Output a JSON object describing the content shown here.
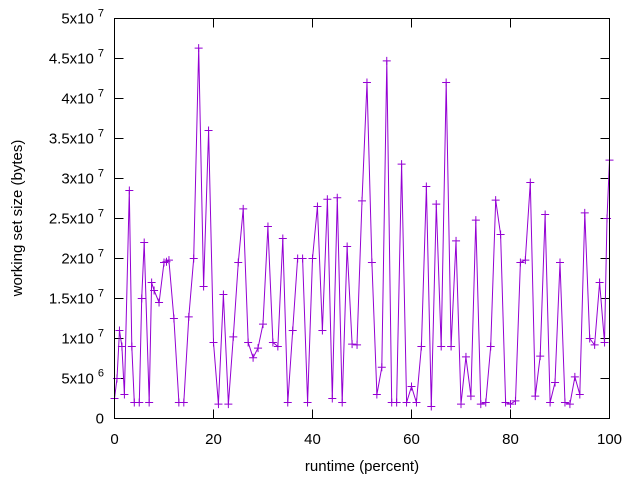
{
  "chart_data": {
    "type": "line",
    "title": "",
    "xlabel": "runtime (percent)",
    "ylabel": "working set size (bytes)",
    "xlim": [
      0,
      100
    ],
    "ylim": [
      0,
      50000000
    ],
    "grid": false,
    "legend": "none",
    "x_ticks": [
      {
        "value": 0,
        "label": "0"
      },
      {
        "value": 20,
        "label": "20"
      },
      {
        "value": 40,
        "label": "40"
      },
      {
        "value": 60,
        "label": "60"
      },
      {
        "value": 80,
        "label": "80"
      },
      {
        "value": 100,
        "label": "100"
      }
    ],
    "y_ticks": [
      {
        "value": 0,
        "base": "0",
        "exp": ""
      },
      {
        "value": 5000000,
        "base": "5x10",
        "exp": "6"
      },
      {
        "value": 10000000,
        "base": "1x10",
        "exp": "7"
      },
      {
        "value": 15000000,
        "base": "1.5x10",
        "exp": "7"
      },
      {
        "value": 20000000,
        "base": "2x10",
        "exp": "7"
      },
      {
        "value": 25000000,
        "base": "2.5x10",
        "exp": "7"
      },
      {
        "value": 30000000,
        "base": "3x10",
        "exp": "7"
      },
      {
        "value": 35000000,
        "base": "3.5x10",
        "exp": "7"
      },
      {
        "value": 40000000,
        "base": "4x10",
        "exp": "7"
      },
      {
        "value": 45000000,
        "base": "4.5x10",
        "exp": "7"
      },
      {
        "value": 50000000,
        "base": "5x10",
        "exp": "7"
      }
    ],
    "series": [
      {
        "color": "#9400d3",
        "marker": "plus",
        "x": [
          0,
          0.5,
          1,
          1.5,
          2,
          3,
          3.5,
          4,
          5,
          5.5,
          6,
          7,
          7.5,
          8,
          9,
          10,
          10.5,
          11,
          12,
          13,
          14,
          15,
          16,
          17,
          18,
          19,
          20,
          21,
          22,
          23,
          24,
          25,
          26,
          27,
          28,
          29,
          30,
          31,
          32,
          33,
          34,
          35,
          36,
          37,
          38,
          39,
          40,
          41,
          42,
          43,
          44,
          45,
          46,
          47,
          48,
          49,
          50,
          51,
          52,
          53,
          54,
          55,
          56,
          57,
          58,
          59,
          60,
          61,
          62,
          63,
          64,
          65,
          66,
          67,
          68,
          69,
          70,
          71,
          72,
          73,
          74,
          75,
          76,
          77,
          78,
          79,
          80,
          81,
          82,
          83,
          84,
          85,
          86,
          87,
          88,
          89,
          90,
          91,
          92,
          93,
          94,
          95,
          96,
          97,
          98,
          99,
          99.5,
          100
        ],
        "y": [
          2500000,
          5000000,
          11000000,
          9000000,
          3000000,
          28500000,
          9000000,
          2000000,
          2000000,
          15000000,
          22000000,
          2000000,
          17000000,
          16000000,
          14500000,
          19500000,
          19600000,
          19800000,
          12500000,
          2000000,
          2000000,
          12700000,
          20000000,
          46300000,
          16500000,
          36000000,
          9500000,
          1800000,
          15500000,
          1800000,
          10200000,
          19500000,
          26200000,
          9500000,
          7600000,
          8800000,
          11800000,
          24000000,
          9500000,
          9000000,
          22500000,
          2000000,
          11000000,
          20000000,
          20000000,
          2000000,
          20000000,
          26500000,
          11000000,
          27400000,
          2500000,
          27600000,
          2000000,
          21500000,
          9300000,
          9200000,
          27200000,
          42000000,
          19500000,
          3000000,
          6400000,
          44700000,
          2000000,
          2000000,
          31800000,
          2000000,
          4000000,
          2000000,
          9000000,
          29000000,
          1500000,
          26800000,
          9000000,
          42000000,
          9000000,
          22200000,
          1800000,
          7700000,
          2800000,
          24800000,
          1800000,
          2000000,
          9000000,
          27300000,
          23000000,
          2000000,
          1800000,
          2200000,
          19500000,
          19800000,
          29500000,
          2800000,
          7800000,
          25500000,
          2000000,
          4500000,
          19500000,
          2000000,
          1800000,
          5200000,
          3000000,
          25700000,
          10000000,
          9200000,
          17000000,
          9500000,
          25000000,
          32300000
        ]
      }
    ]
  }
}
